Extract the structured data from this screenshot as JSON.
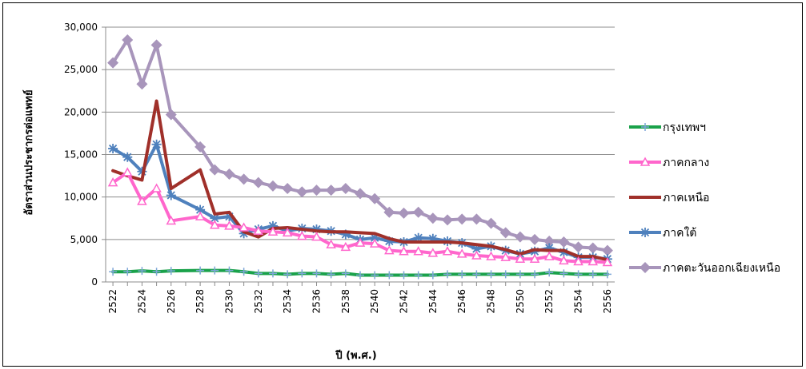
{
  "chart_data": {
    "type": "line",
    "xlabel": "ปี (พ.ศ.)",
    "ylabel": "อัตราส่วนประชากรต่อแพทย์",
    "ylim": [
      0,
      30000
    ],
    "yticks": [
      "0",
      "5,000",
      "10,000",
      "15,000",
      "20,000",
      "25,000",
      "30,000"
    ],
    "xticks": [
      "2522",
      "2524",
      "2526",
      "2528",
      "2530",
      "2532",
      "2534",
      "2536",
      "2538",
      "2540",
      "2542",
      "2544",
      "2546",
      "2548",
      "2550",
      "2552",
      "2554",
      "2556"
    ],
    "grid": "horizontal",
    "legend_position": "right",
    "series": [
      {
        "name": "กรุงเทพฯ",
        "color": "#1aa24a",
        "marker": "plus",
        "x": [
          2522,
          2523,
          2524,
          2525,
          2526,
          2528,
          2529,
          2530,
          2531,
          2532,
          2533,
          2534,
          2535,
          2536,
          2537,
          2538,
          2539,
          2540,
          2541,
          2542,
          2543,
          2544,
          2545,
          2546,
          2547,
          2548,
          2549,
          2550,
          2551,
          2552,
          2553,
          2554,
          2555,
          2556
        ],
        "values": [
          1200,
          1200,
          1300,
          1200,
          1300,
          1350,
          1350,
          1350,
          1200,
          1000,
          1000,
          900,
          1000,
          1000,
          900,
          1000,
          800,
          800,
          800,
          800,
          800,
          800,
          900,
          900,
          900,
          900,
          900,
          900,
          900,
          1100,
          1000,
          900,
          900,
          900
        ]
      },
      {
        "name": "ภาคกลาง",
        "color": "#ff66cc",
        "marker": "triangle",
        "x": [
          2522,
          2523,
          2524,
          2525,
          2526,
          2528,
          2529,
          2530,
          2531,
          2532,
          2533,
          2534,
          2535,
          2536,
          2537,
          2538,
          2539,
          2540,
          2541,
          2542,
          2543,
          2544,
          2545,
          2546,
          2547,
          2548,
          2549,
          2550,
          2551,
          2552,
          2553,
          2554,
          2555,
          2556
        ],
        "values": [
          11700,
          12900,
          9500,
          11000,
          7200,
          7700,
          6700,
          6600,
          6400,
          6000,
          5900,
          5800,
          5400,
          5300,
          4400,
          4100,
          4600,
          4500,
          3700,
          3600,
          3600,
          3400,
          3600,
          3300,
          3100,
          3000,
          2900,
          2700,
          2700,
          3000,
          2500,
          2400,
          2400,
          2300
        ]
      },
      {
        "name": "ภาคเหนือ",
        "color": "#a0302a",
        "marker": "none",
        "x": [
          2522,
          2523,
          2524,
          2525,
          2526,
          2528,
          2529,
          2530,
          2531,
          2532,
          2533,
          2534,
          2535,
          2536,
          2537,
          2538,
          2539,
          2540,
          2541,
          2542,
          2543,
          2544,
          2545,
          2546,
          2547,
          2548,
          2549,
          2550,
          2551,
          2552,
          2553,
          2554,
          2555,
          2556
        ],
        "values": [
          13100,
          12500,
          12000,
          21300,
          11000,
          13200,
          8000,
          8200,
          5900,
          5300,
          6300,
          6400,
          6200,
          6000,
          5900,
          5900,
          5800,
          5700,
          5100,
          4700,
          4700,
          4700,
          4700,
          4600,
          4400,
          4200,
          3800,
          3300,
          3800,
          3700,
          3700,
          3000,
          3000,
          2600
        ]
      },
      {
        "name": "ภาคใต้",
        "color": "#4f81bd",
        "marker": "asterisk",
        "x": [
          2522,
          2523,
          2524,
          2525,
          2526,
          2528,
          2529,
          2530,
          2531,
          2532,
          2533,
          2534,
          2535,
          2536,
          2537,
          2538,
          2539,
          2540,
          2541,
          2542,
          2543,
          2544,
          2545,
          2546,
          2547,
          2548,
          2549,
          2550,
          2551,
          2552,
          2553,
          2554,
          2555,
          2556
        ],
        "values": [
          15700,
          14700,
          13000,
          16200,
          10200,
          8500,
          7500,
          7700,
          5700,
          6200,
          6600,
          6000,
          6300,
          6200,
          6000,
          5600,
          5000,
          5200,
          4800,
          4700,
          5200,
          5100,
          4800,
          4600,
          3900,
          4200,
          3700,
          3300,
          3600,
          4000,
          3500,
          2900,
          2900,
          2700
        ]
      },
      {
        "name": "ภาคตะวันออกเฉียงเหนือ",
        "color": "#a895bb",
        "marker": "diamond",
        "x": [
          2522,
          2523,
          2524,
          2525,
          2526,
          2528,
          2529,
          2530,
          2531,
          2532,
          2533,
          2534,
          2535,
          2536,
          2537,
          2538,
          2539,
          2540,
          2541,
          2542,
          2543,
          2544,
          2545,
          2546,
          2547,
          2548,
          2549,
          2550,
          2551,
          2552,
          2553,
          2554,
          2555,
          2556
        ],
        "values": [
          25800,
          28500,
          23300,
          27900,
          19700,
          15900,
          13200,
          12700,
          12100,
          11700,
          11300,
          11000,
          10600,
          10800,
          10800,
          11000,
          10400,
          9800,
          8200,
          8100,
          8200,
          7500,
          7300,
          7400,
          7400,
          6900,
          5800,
          5300,
          5000,
          4800,
          4700,
          4100,
          4000,
          3700
        ]
      }
    ]
  }
}
